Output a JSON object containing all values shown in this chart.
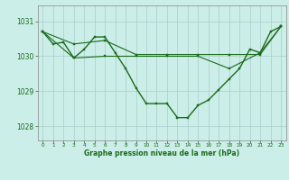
{
  "title": "Graphe pression niveau de la mer (hPa)",
  "background_color": "#cceee8",
  "grid_color": "#aacccc",
  "line_color": "#1a6b1a",
  "marker_color": "#1a6b1a",
  "xlim": [
    -0.5,
    23.5
  ],
  "ylim": [
    1027.6,
    1031.45
  ],
  "yticks": [
    1028,
    1029,
    1030,
    1031
  ],
  "xticks": [
    0,
    1,
    2,
    3,
    4,
    5,
    6,
    7,
    8,
    9,
    10,
    11,
    12,
    13,
    14,
    15,
    16,
    17,
    18,
    19,
    20,
    21,
    22,
    23
  ],
  "series": [
    {
      "x": [
        0,
        1,
        2,
        3,
        4,
        5,
        6,
        7,
        8,
        9,
        10,
        11,
        12,
        13,
        14,
        15,
        16,
        17,
        18,
        19,
        20,
        21,
        22,
        23
      ],
      "y": [
        1030.7,
        1030.35,
        1030.4,
        1029.95,
        1030.2,
        1030.55,
        1030.55,
        1030.1,
        1029.65,
        1029.1,
        1028.65,
        1028.65,
        1028.65,
        1028.25,
        1028.25,
        1028.6,
        1028.75,
        1029.05,
        1029.35,
        1029.65,
        1030.2,
        1030.1,
        1030.7,
        1030.85
      ]
    },
    {
      "x": [
        0,
        3,
        6,
        9,
        12,
        15,
        18,
        21,
        23
      ],
      "y": [
        1030.7,
        1030.35,
        1030.45,
        1030.05,
        1030.05,
        1030.05,
        1030.05,
        1030.05,
        1030.85
      ]
    },
    {
      "x": [
        0,
        3,
        6,
        9,
        12,
        15,
        18,
        21,
        23
      ],
      "y": [
        1030.7,
        1029.95,
        1030.0,
        1030.0,
        1030.0,
        1030.0,
        1029.65,
        1030.1,
        1030.85
      ]
    }
  ],
  "lw": [
    1.0,
    0.8,
    0.8
  ],
  "title_fontsize": 5.5,
  "xtick_fontsize": 4.2,
  "ytick_fontsize": 5.5
}
